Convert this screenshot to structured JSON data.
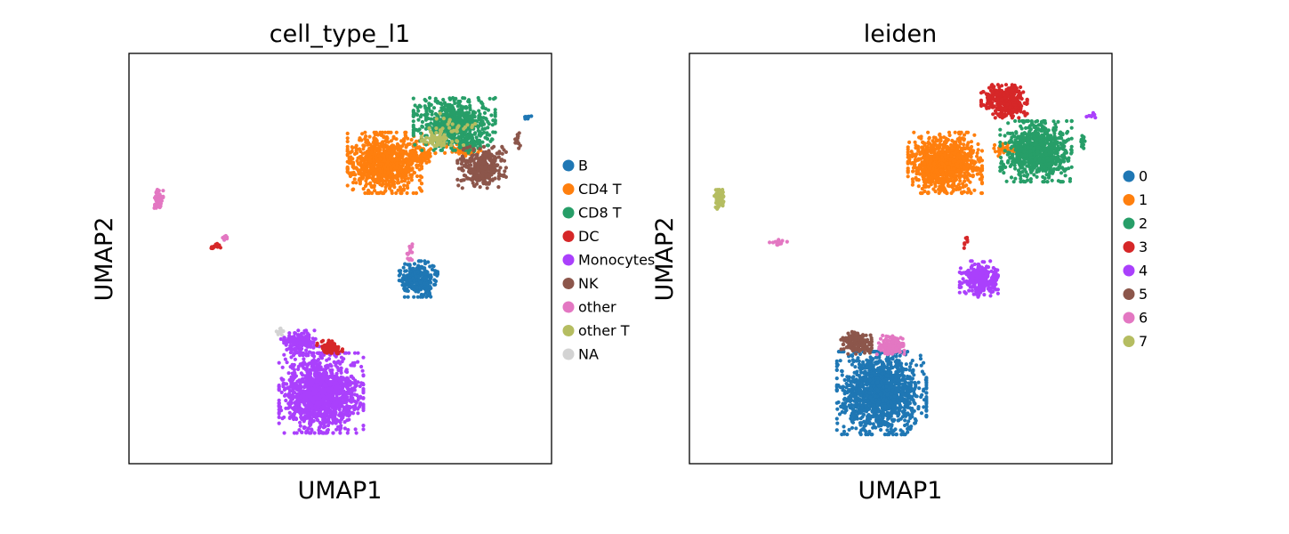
{
  "chart_data": [
    {
      "type": "scatter",
      "title": "cell_type_l1",
      "xlabel": "UMAP1",
      "ylabel": "UMAP2",
      "x_ticks": "none",
      "y_ticks": "none",
      "grid": false,
      "legend_position": "right",
      "legend": [
        {
          "label": "B",
          "color": "#1f77b4"
        },
        {
          "label": "CD4 T",
          "color": "#ff7f0e"
        },
        {
          "label": "CD8 T",
          "color": "#279e68"
        },
        {
          "label": "DC",
          "color": "#d62728"
        },
        {
          "label": "Monocytes",
          "color": "#aa40fc"
        },
        {
          "label": "NK",
          "color": "#8c564b"
        },
        {
          "label": "other",
          "color": "#e377c2"
        },
        {
          "label": "other T",
          "color": "#b5bd61"
        },
        {
          "label": "NA",
          "color": "#d3d3d3"
        }
      ],
      "series": [
        {
          "name": "CD4 T",
          "color": "#ff7f0e",
          "clusters": [
            {
              "center": [
                4.6,
                7.2
              ],
              "spread": [
                1.45,
                1.1
              ],
              "n": 900
            },
            {
              "center": [
                6.4,
                7.6
              ],
              "spread": [
                0.5,
                0.35
              ],
              "n": 70
            },
            {
              "center": [
                8.3,
                7.8
              ],
              "spread": [
                0.7,
                0.25
              ],
              "n": 60
            }
          ]
        },
        {
          "name": "CD8 T",
          "color": "#279e68",
          "clusters": [
            {
              "center": [
                7.9,
                8.9
              ],
              "spread": [
                1.6,
                0.95
              ],
              "n": 650
            },
            {
              "center": [
                8.6,
                8.0
              ],
              "spread": [
                0.45,
                0.3
              ],
              "n": 40
            }
          ]
        },
        {
          "name": "other T",
          "color": "#b5bd61",
          "clusters": [
            {
              "center": [
                7.0,
                8.2
              ],
              "spread": [
                0.55,
                0.3
              ],
              "n": 60
            },
            {
              "center": [
                7.8,
                8.7
              ],
              "spread": [
                0.9,
                0.6
              ],
              "n": 40
            }
          ]
        },
        {
          "name": "NK",
          "color": "#8c564b",
          "clusters": [
            {
              "center": [
                9.2,
                7.0
              ],
              "spread": [
                0.95,
                0.75
              ],
              "n": 320
            },
            {
              "center": [
                10.9,
                8.2
              ],
              "spread": [
                0.1,
                0.3
              ],
              "n": 16
            }
          ]
        },
        {
          "name": "B",
          "color": "#1f77b4",
          "clusters": [
            {
              "center": [
                6.2,
                2.1
              ],
              "spread": [
                0.75,
                0.65
              ],
              "n": 280
            },
            {
              "center": [
                11.4,
                9.2
              ],
              "spread": [
                0.18,
                0.1
              ],
              "n": 10
            }
          ]
        },
        {
          "name": "Monocytes",
          "color": "#aa40fc",
          "clusters": [
            {
              "center": [
                1.6,
                -2.9
              ],
              "spread": [
                1.65,
                1.45
              ],
              "n": 1300
            },
            {
              "center": [
                0.6,
                -0.7
              ],
              "spread": [
                0.75,
                0.45
              ],
              "n": 160
            }
          ]
        },
        {
          "name": "DC",
          "color": "#d62728",
          "clusters": [
            {
              "center": [
                2.0,
                -0.9
              ],
              "spread": [
                0.5,
                0.25
              ],
              "n": 90
            },
            {
              "center": [
                -3.4,
                3.5
              ],
              "spread": [
                0.25,
                0.15
              ],
              "n": 16
            }
          ]
        },
        {
          "name": "other",
          "color": "#e377c2",
          "clusters": [
            {
              "center": [
                -6.1,
                5.6
              ],
              "spread": [
                0.18,
                0.35
              ],
              "n": 60
            },
            {
              "center": [
                -2.9,
                3.9
              ],
              "spread": [
                0.15,
                0.1
              ],
              "n": 8
            },
            {
              "center": [
                5.8,
                3.3
              ],
              "spread": [
                0.15,
                0.45
              ],
              "n": 14
            }
          ]
        },
        {
          "name": "NA",
          "color": "#d3d3d3",
          "clusters": [
            {
              "center": [
                -0.4,
                -0.2
              ],
              "spread": [
                0.25,
                0.12
              ],
              "n": 12
            }
          ]
        }
      ],
      "xlim": [
        -7.5,
        12.5
      ],
      "ylim": [
        -6,
        12
      ]
    },
    {
      "type": "scatter",
      "title": "leiden",
      "xlabel": "UMAP1",
      "ylabel": "UMAP2",
      "x_ticks": "none",
      "y_ticks": "none",
      "grid": false,
      "legend_position": "right",
      "legend": [
        {
          "label": "0",
          "color": "#1f77b4"
        },
        {
          "label": "1",
          "color": "#ff7f0e"
        },
        {
          "label": "2",
          "color": "#279e68"
        },
        {
          "label": "3",
          "color": "#d62728"
        },
        {
          "label": "4",
          "color": "#aa40fc"
        },
        {
          "label": "5",
          "color": "#8c564b"
        },
        {
          "label": "6",
          "color": "#e377c2"
        },
        {
          "label": "7",
          "color": "#b5bd61"
        }
      ],
      "series": [
        {
          "name": "0",
          "color": "#1f77b4",
          "clusters": [
            {
              "center": [
                1.6,
                -2.9
              ],
              "spread": [
                1.75,
                1.5
              ],
              "n": 1400
            }
          ]
        },
        {
          "name": "1",
          "color": "#ff7f0e",
          "clusters": [
            {
              "center": [
                4.6,
                7.2
              ],
              "spread": [
                1.45,
                1.1
              ],
              "n": 950
            },
            {
              "center": [
                7.5,
                7.8
              ],
              "spread": [
                0.5,
                0.25
              ],
              "n": 40
            }
          ]
        },
        {
          "name": "2",
          "color": "#279e68",
          "clusters": [
            {
              "center": [
                8.9,
                7.7
              ],
              "spread": [
                1.4,
                1.1
              ],
              "n": 750
            },
            {
              "center": [
                11.1,
                8.2
              ],
              "spread": [
                0.1,
                0.3
              ],
              "n": 14
            }
          ]
        },
        {
          "name": "3",
          "color": "#d62728",
          "clusters": [
            {
              "center": [
                7.4,
                9.9
              ],
              "spread": [
                0.9,
                0.6
              ],
              "n": 320
            },
            {
              "center": [
                5.6,
                3.7
              ],
              "spread": [
                0.1,
                0.2
              ],
              "n": 8
            }
          ]
        },
        {
          "name": "4",
          "color": "#aa40fc",
          "clusters": [
            {
              "center": [
                6.2,
                2.1
              ],
              "spread": [
                0.75,
                0.65
              ],
              "n": 300
            },
            {
              "center": [
                11.5,
                9.3
              ],
              "spread": [
                0.2,
                0.1
              ],
              "n": 10
            }
          ]
        },
        {
          "name": "5",
          "color": "#8c564b",
          "clusters": [
            {
              "center": [
                0.4,
                -0.7
              ],
              "spread": [
                0.6,
                0.4
              ],
              "n": 150
            }
          ]
        },
        {
          "name": "6",
          "color": "#e377c2",
          "clusters": [
            {
              "center": [
                2.1,
                -0.8
              ],
              "spread": [
                0.6,
                0.35
              ],
              "n": 130
            },
            {
              "center": [
                -3.3,
                3.7
              ],
              "spread": [
                0.35,
                0.15
              ],
              "n": 16
            }
          ]
        },
        {
          "name": "7",
          "color": "#b5bd61",
          "clusters": [
            {
              "center": [
                -6.1,
                5.6
              ],
              "spread": [
                0.18,
                0.35
              ],
              "n": 70
            }
          ]
        }
      ],
      "xlim": [
        -7.5,
        12.5
      ],
      "ylim": [
        -6,
        12
      ]
    }
  ]
}
